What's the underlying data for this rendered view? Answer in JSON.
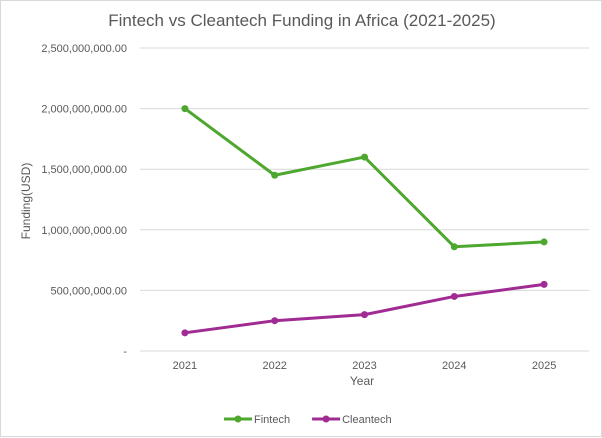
{
  "chart_data": {
    "type": "line",
    "title": "Fintech vs Cleantech Funding in Africa (2021-2025)",
    "xlabel": "Year",
    "ylabel": "Funding(USD)",
    "categories": [
      "2021",
      "2022",
      "2023",
      "2024",
      "2025"
    ],
    "ylim": [
      0,
      2500000000
    ],
    "yticks": [
      0,
      500000000,
      1000000000,
      1500000000,
      2000000000,
      2500000000
    ],
    "ytick_labels": [
      "-",
      "500,000,000.00",
      "1,000,000,000.00",
      "1,500,000,000.00",
      "2,000,000,000.00",
      "2,500,000,000.00"
    ],
    "grid": true,
    "legend": "bottom",
    "series": [
      {
        "name": "Fintech",
        "color": "#4ea72e",
        "values": [
          2000000000,
          1450000000,
          1600000000,
          860000000,
          900000000
        ]
      },
      {
        "name": "Cleantech",
        "color": "#a02b93",
        "values": [
          150000000,
          250000000,
          300000000,
          450000000,
          550000000
        ]
      }
    ]
  }
}
